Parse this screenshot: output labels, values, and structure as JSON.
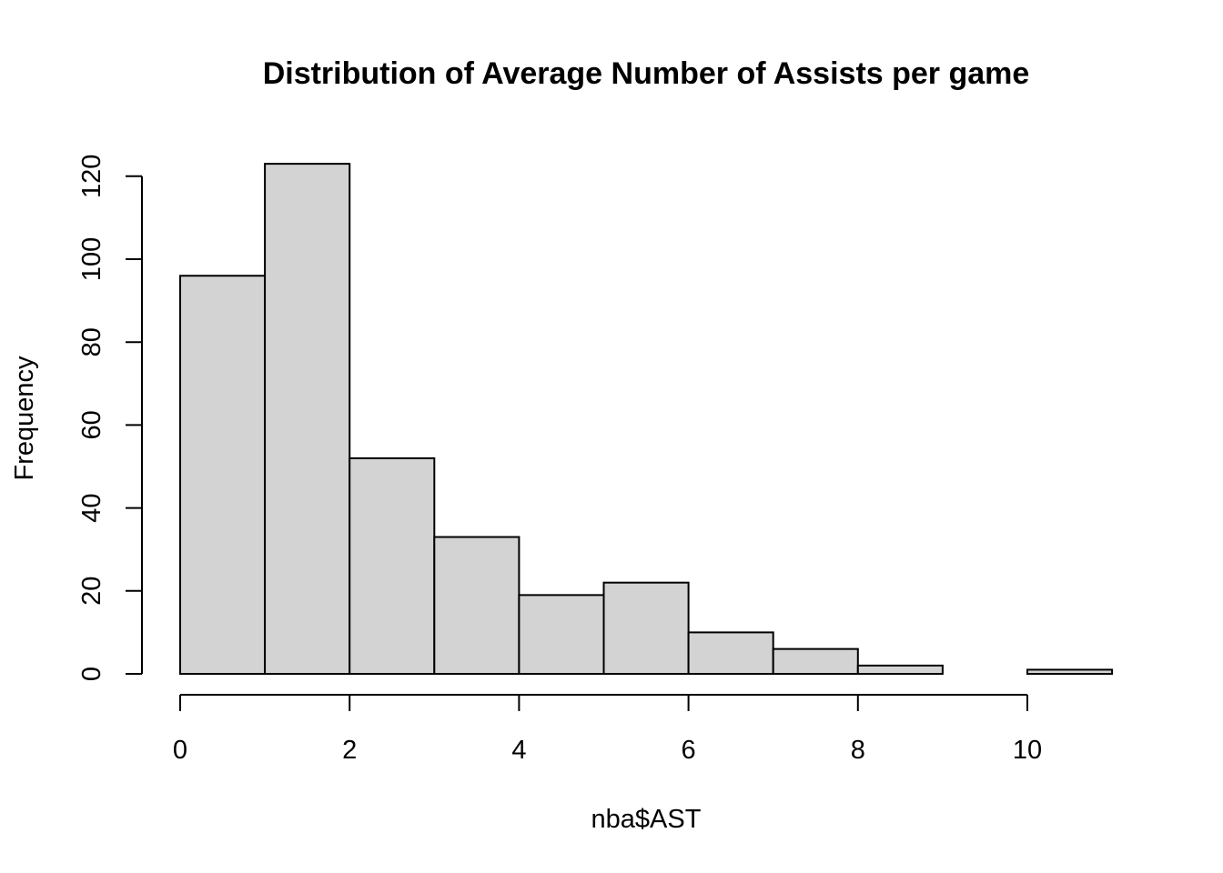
{
  "chart_data": {
    "type": "bar",
    "title": "Distribution of Average Number of Assists per game",
    "xlabel": "nba$AST",
    "ylabel": "Frequency",
    "bins": [
      {
        "from": 0,
        "to": 1,
        "count": 96
      },
      {
        "from": 1,
        "to": 2,
        "count": 123
      },
      {
        "from": 2,
        "to": 3,
        "count": 52
      },
      {
        "from": 3,
        "to": 4,
        "count": 33
      },
      {
        "from": 4,
        "to": 5,
        "count": 19
      },
      {
        "from": 5,
        "to": 6,
        "count": 22
      },
      {
        "from": 6,
        "to": 7,
        "count": 10
      },
      {
        "from": 7,
        "to": 8,
        "count": 6
      },
      {
        "from": 8,
        "to": 9,
        "count": 2
      },
      {
        "from": 9,
        "to": 10,
        "count": 0
      },
      {
        "from": 10,
        "to": 11,
        "count": 1
      }
    ],
    "xlim": [
      0,
      11
    ],
    "ylim": [
      0,
      123
    ],
    "x_ticks": [
      0,
      2,
      4,
      6,
      8,
      10
    ],
    "x_tick_labels": [
      "0",
      "2",
      "4",
      "6",
      "8",
      "10"
    ],
    "y_ticks": [
      0,
      20,
      40,
      60,
      80,
      100,
      120
    ],
    "y_tick_labels": [
      "0",
      "20",
      "40",
      "60",
      "80",
      "100",
      "120"
    ],
    "grid": false,
    "legend": "none",
    "colors": {
      "bar_fill": "#d3d3d3",
      "bar_stroke": "#000000",
      "background": "#ffffff"
    }
  }
}
